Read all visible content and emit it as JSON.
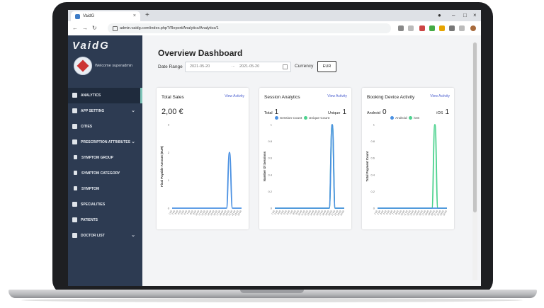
{
  "browser": {
    "tab_title": "VaidG",
    "tab_close": "×",
    "new_tab": "+",
    "url": "admin.vaidg.com/index.php?/Report/Analytics/Analytics/1"
  },
  "sidebar": {
    "logo": "VaidG",
    "welcome": "Welcome superadmin",
    "items": [
      {
        "label": "ANALYTICS",
        "icon": "dashboard-icon",
        "active": true,
        "chevron": false,
        "sub": false
      },
      {
        "label": "APP SETTING",
        "icon": "gears-icon",
        "active": false,
        "chevron": true,
        "sub": false
      },
      {
        "label": "CITIES",
        "icon": "building-icon",
        "active": false,
        "chevron": false,
        "sub": false
      },
      {
        "label": "PRESCRIPTION ATTRIBUTES",
        "icon": "gears-icon",
        "active": false,
        "chevron": true,
        "sub": false
      },
      {
        "label": "SYMPTOM GROUP",
        "icon": "tools-icon",
        "active": false,
        "chevron": false,
        "sub": true
      },
      {
        "label": "SYMPTOM CATEGORY",
        "icon": "flask-icon",
        "active": false,
        "chevron": false,
        "sub": true
      },
      {
        "label": "SYMPTOM",
        "icon": "bottle-icon",
        "active": false,
        "chevron": false,
        "sub": true
      },
      {
        "label": "SPECIALITIES",
        "icon": "grid-icon",
        "active": false,
        "chevron": false,
        "sub": false
      },
      {
        "label": "PATIENTS",
        "icon": "user-icon",
        "active": false,
        "chevron": false,
        "sub": false
      },
      {
        "label": "DOCTOR LIST",
        "icon": "doctor-icon",
        "active": false,
        "chevron": true,
        "sub": false
      }
    ]
  },
  "main": {
    "title": "Overview Dashboard",
    "date_range_label": "Date Range",
    "date_from": "2021-05-20",
    "date_separator": "...",
    "date_to": "2021-05-20",
    "currency_label": "Currency",
    "currency_value": "EUR"
  },
  "cards": {
    "sales": {
      "title": "Total Sales",
      "link": "View Activity",
      "value": "2,00 €"
    },
    "session": {
      "title": "Session Analytics",
      "link": "View Activity",
      "total_label": "Total",
      "total_value": "1",
      "unique_label": "Unique",
      "unique_value": "1",
      "legend": [
        "Session Count",
        "Unique Count"
      ]
    },
    "device": {
      "title": "Booking Device Activity",
      "link": "View Activity",
      "android_label": "Android",
      "android_value": "0",
      "ios_label": "iOS",
      "ios_value": "1",
      "legend": [
        "Android",
        "iOS"
      ]
    }
  },
  "colors": {
    "blue": "#4a90e2",
    "green": "#4cd28e",
    "sidebar": "#2d3b52"
  },
  "chart_data": [
    {
      "type": "line",
      "ylabel": "Final Payable Amount (EUR)",
      "yticks": [
        0,
        1,
        2,
        3
      ],
      "ylim": [
        0,
        3
      ],
      "x": [
        "1:00",
        "2:00",
        "3:00",
        "4:00",
        "5:00",
        "6:00",
        "7:00",
        "8:00",
        "9:00",
        "10:00",
        "11:00",
        "12:00",
        "13:00",
        "14:00",
        "15:00",
        "16:00",
        "17:00",
        "18:00",
        "19:00",
        "20:00",
        "21:00",
        "22:00",
        "23:00",
        "24:00"
      ],
      "series": [
        {
          "values": [
            0,
            0,
            0,
            0,
            0,
            0,
            0,
            0,
            0,
            0,
            0,
            0,
            0,
            0,
            0,
            0,
            0,
            0,
            0,
            2,
            0,
            0,
            0,
            0
          ]
        }
      ]
    },
    {
      "type": "line",
      "ylabel": "Number Of Sessions",
      "yticks": [
        0,
        0.2,
        0.4,
        0.6,
        0.8,
        1
      ],
      "ylim": [
        0,
        1
      ],
      "x": [
        "1:00",
        "2:00",
        "3:00",
        "4:00",
        "5:00",
        "6:00",
        "7:00",
        "8:00",
        "9:00",
        "10:00",
        "11:00",
        "12:00",
        "13:00",
        "14:00",
        "15:00",
        "16:00",
        "17:00",
        "18:00",
        "19:00",
        "20:00",
        "21:00",
        "22:00",
        "23:00",
        "24:00"
      ],
      "series": [
        {
          "name": "Session Count",
          "values": [
            0,
            0,
            0,
            0,
            0,
            0,
            0,
            0,
            0,
            0,
            0,
            0,
            0,
            0,
            0,
            0,
            0,
            0,
            0,
            1,
            0,
            0,
            0,
            0
          ]
        },
        {
          "name": "Unique Count",
          "values": [
            0,
            0,
            0,
            0,
            0,
            0,
            0,
            0,
            0,
            0,
            0,
            0,
            0,
            0,
            0,
            0,
            0,
            0,
            0,
            1,
            0,
            0,
            0,
            0
          ]
        }
      ]
    },
    {
      "type": "line",
      "ylabel": "Total Payment Count",
      "yticks": [
        0,
        0.2,
        0.4,
        0.6,
        0.8,
        1
      ],
      "ylim": [
        0,
        1
      ],
      "x": [
        "1:00",
        "2:00",
        "3:00",
        "4:00",
        "5:00",
        "6:00",
        "7:00",
        "8:00",
        "9:00",
        "10:00",
        "11:00",
        "12:00",
        "13:00",
        "14:00",
        "15:00",
        "16:00",
        "17:00",
        "18:00",
        "19:00",
        "20:00",
        "21:00",
        "22:00",
        "23:00",
        "24:00"
      ],
      "series": [
        {
          "name": "Android",
          "values": [
            0,
            0,
            0,
            0,
            0,
            0,
            0,
            0,
            0,
            0,
            0,
            0,
            0,
            0,
            0,
            0,
            0,
            0,
            0,
            0,
            0,
            0,
            0,
            0
          ]
        },
        {
          "name": "iOS",
          "values": [
            0,
            0,
            0,
            0,
            0,
            0,
            0,
            0,
            0,
            0,
            0,
            0,
            0,
            0,
            0,
            0,
            0,
            0,
            0,
            1,
            0,
            0,
            0,
            0
          ]
        }
      ]
    }
  ]
}
